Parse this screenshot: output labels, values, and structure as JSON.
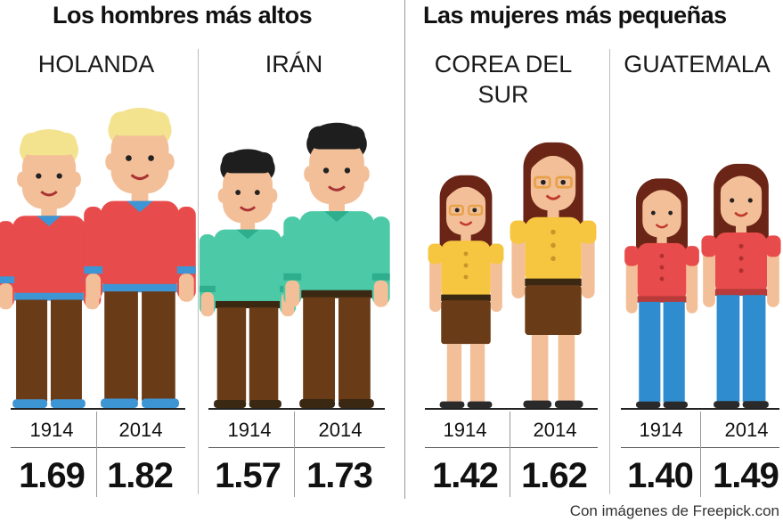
{
  "headers": {
    "men": "Los hombres más altos",
    "women": "Las mujeres más pequeñas"
  },
  "credit": "Con imágenes de Freepick.con",
  "colors": {
    "skin": "#f3bf98",
    "red_shirt": "#e84b4b",
    "blue_accent": "#3e95d4",
    "teal_shirt": "#4ccaa8",
    "brown_pants": "#6a3b17",
    "yellow_top": "#f6c640",
    "blue_jeans": "#2f8ccf",
    "blond_hair": "#f3e38f",
    "dark_hair": "#1e1e1e",
    "brown_hair": "#6b2516"
  },
  "chart_data": {
    "type": "bar",
    "ylabel": "",
    "groups": [
      {
        "country": "HOLANDA",
        "section": "men",
        "years": [
          "1914",
          "2014"
        ],
        "values": [
          1.69,
          1.82
        ],
        "labels": [
          "1.69",
          "1.82"
        ],
        "icon": "man-red-shirt-blond-icon"
      },
      {
        "country": "IRÁN",
        "section": "men",
        "years": [
          "1914",
          "2014"
        ],
        "values": [
          1.57,
          1.73
        ],
        "labels": [
          "1.57",
          "1.73"
        ],
        "icon": "man-teal-shirt-dark-hair-icon"
      },
      {
        "country": "COREA DEL SUR",
        "section": "women",
        "years": [
          "1914",
          "2014"
        ],
        "values": [
          1.42,
          1.62
        ],
        "labels": [
          "1.42",
          "1.62"
        ],
        "icon": "woman-yellow-top-glasses-icon"
      },
      {
        "country": "GUATEMALA",
        "section": "women",
        "years": [
          "1914",
          "2014"
        ],
        "values": [
          1.4,
          1.49
        ],
        "labels": [
          "1.40",
          "1.49"
        ],
        "icon": "woman-red-top-jeans-icon"
      }
    ]
  }
}
